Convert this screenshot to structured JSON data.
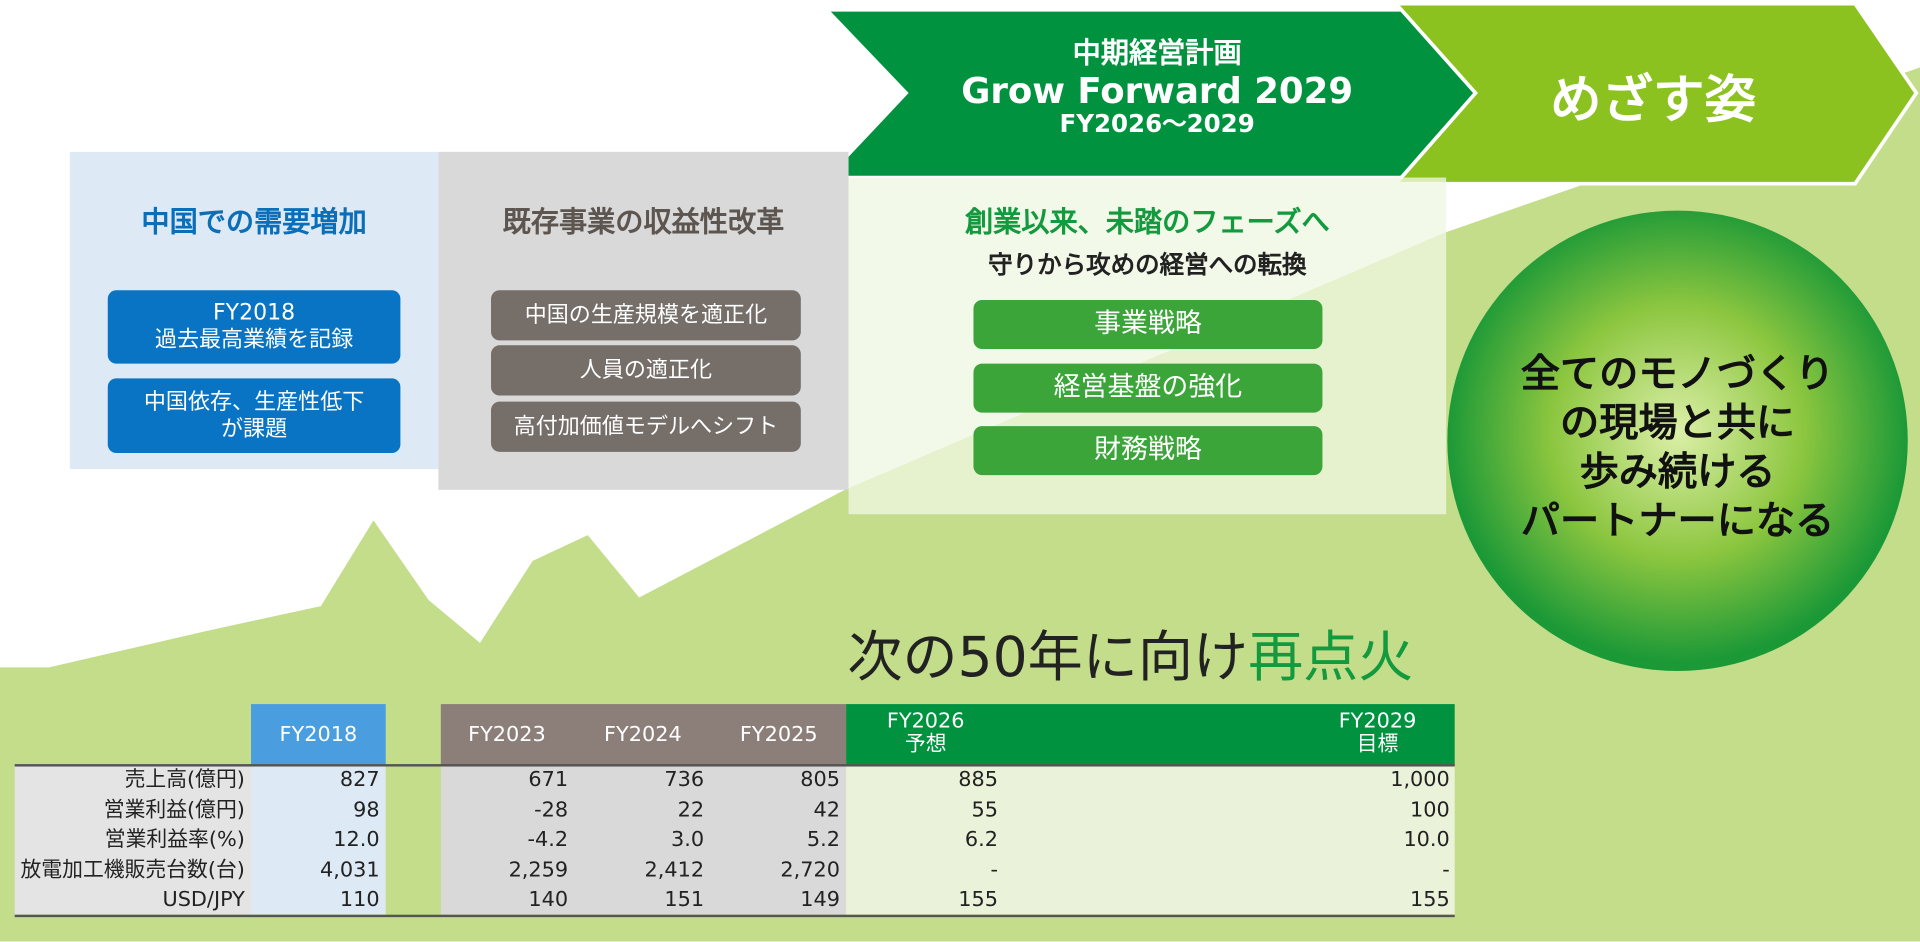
{
  "plan_banner": {
    "title": "中期経営計画",
    "subtitle": "Grow Forward 2029",
    "period": "FY2026～2029"
  },
  "goal_banner": "めざす姿",
  "panels": [
    {
      "title": "中国での需要増加",
      "items": [
        [
          "FY2018",
          "過去最高業績を記録"
        ],
        [
          "中国依存、生産性低下",
          "が課題"
        ]
      ]
    },
    {
      "title": "既存事業の収益性改革",
      "items": [
        "中国の生産規模を適正化",
        "人員の適正化",
        "高付加価値モデルへシフト"
      ]
    },
    {
      "title": "創業以来、未踏のフェーズへ",
      "subtitle": "守りから攻めの経営への転換",
      "items": [
        "事業戦略",
        "経営基盤の強化",
        "財務戦略"
      ]
    }
  ],
  "vision": [
    "全てのモノづくり",
    "の現場と共に",
    "歩み続ける",
    "パートナーになる"
  ],
  "slogan": [
    "次の50年に向け",
    "再点火"
  ],
  "table": {
    "columns": [
      [
        "FY2018"
      ],
      [
        "FY2023"
      ],
      [
        "FY2024"
      ],
      [
        "FY2025"
      ],
      [
        "FY2026",
        "予想"
      ],
      [
        "FY2029",
        "目標"
      ]
    ],
    "rows": [
      {
        "label": "売上高(億円)",
        "cells": [
          "827",
          "671",
          "736",
          "805",
          "885",
          "1,000"
        ]
      },
      {
        "label": "営業利益(億円)",
        "cells": [
          "98",
          "-28",
          "22",
          "42",
          "55",
          "100"
        ]
      },
      {
        "label": "営業利益率(%)",
        "cells": [
          "12.0",
          "-4.2",
          "3.0",
          "5.2",
          "6.2",
          "10.0"
        ]
      },
      {
        "label": "放電加工機販売台数(台)",
        "cells": [
          "4,031",
          "2,259",
          "2,412",
          "2,720",
          "-",
          "-"
        ]
      },
      {
        "label": "USD/JPY",
        "cells": [
          "110",
          "140",
          "151",
          "149",
          "155",
          "155"
        ]
      }
    ]
  }
}
